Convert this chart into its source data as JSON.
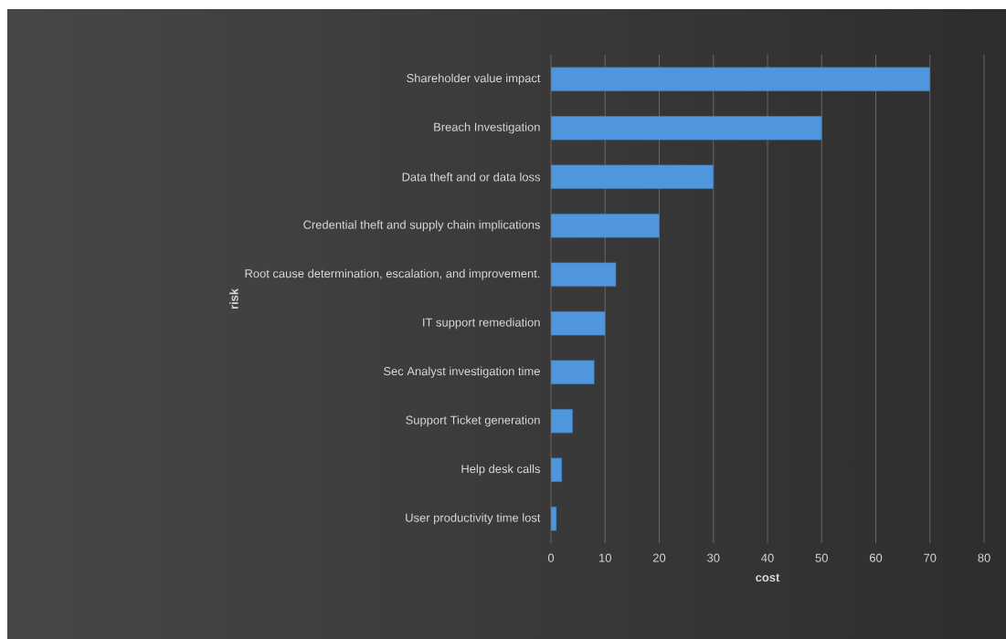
{
  "chart_data": {
    "type": "bar",
    "orientation": "horizontal",
    "xlabel": "cost",
    "ylabel": "risk",
    "categories": [
      "Shareholder value impact",
      "Breach Investigation",
      "Data theft and or data loss",
      "Credential theft and supply chain implications",
      "Root cause determination, escalation, and improvement.",
      "IT support remediation",
      "Sec Analyst investigation time",
      "Support Ticket generation",
      "Help desk calls",
      "User productivity time lost"
    ],
    "values": [
      70,
      50,
      30,
      20,
      12,
      10,
      8,
      4,
      2,
      1
    ],
    "color": "#4f96dc",
    "xlim": [
      0,
      80
    ],
    "xticks": [
      0,
      10,
      20,
      30,
      40,
      50,
      60,
      70,
      80
    ],
    "grid": "x"
  }
}
